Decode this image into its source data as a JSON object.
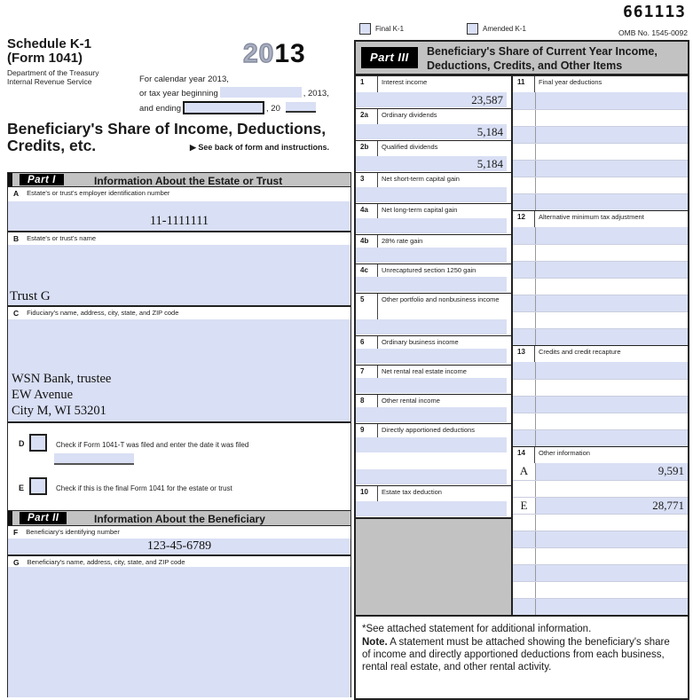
{
  "header": {
    "schedule_line1": "Schedule K-1",
    "schedule_line2": "(Form 1041)",
    "dept_line1": "Department of the Treasury",
    "dept_line2": "Internal Revenue Service",
    "year_prefix": "20",
    "year_suffix": "13",
    "calendar_line": "For calendar year 2013,",
    "beginning_label": "or tax year beginning",
    "beginning_suffix": ", 2013,",
    "ending_label": "and ending",
    "ending_suffix": ", 20",
    "main_title_line1": "Beneficiary's Share of Income, Deductions,",
    "main_title_line2": "Credits, etc.",
    "see_back": "▶ See back of form and instructions."
  },
  "top_right": {
    "serial": "661113",
    "omb": "OMB No. 1545-0092",
    "final_k1_label": "Final K-1",
    "amended_k1_label": "Amended K-1"
  },
  "part1": {
    "badge": "Part I",
    "title": "Information About the Estate or Trust",
    "a": {
      "letter": "A",
      "label": "Estate's or trust's employer identification number",
      "value": "11-1111111"
    },
    "b": {
      "letter": "B",
      "label": "Estate's or trust's name",
      "value": "Trust G"
    },
    "c": {
      "letter": "C",
      "label": "Fiduciary's name, address, city, state, and ZIP code",
      "line1": "WSN Bank, trustee",
      "line2": "EW Avenue",
      "line3": "City M, WI 53201"
    },
    "d": {
      "letter": "D",
      "label": "Check if Form 1041-T was filed and enter the date it was filed",
      "date_value": ""
    },
    "e": {
      "letter": "E",
      "label": "Check if this is the final Form 1041 for the estate or trust"
    }
  },
  "part2": {
    "badge": "Part II",
    "title": "Information About the Beneficiary",
    "f": {
      "letter": "F",
      "label": "Beneficiary's identifying number",
      "value": "123-45-6789"
    },
    "g": {
      "letter": "G",
      "label": "Beneficiary's name, address, city, state, and ZIP code",
      "value": ""
    }
  },
  "part3": {
    "badge": "Part III",
    "title_line1": "Beneficiary's Share of Current Year Income,",
    "title_line2": "Deductions, Credits, and Other Items",
    "left_items": [
      {
        "num": "1",
        "label": "Interest income",
        "values": [
          "23,587"
        ]
      },
      {
        "num": "2a",
        "label": "Ordinary dividends",
        "values": [
          "5,184"
        ]
      },
      {
        "num": "2b",
        "label": "Qualified dividends",
        "values": [
          "5,184"
        ]
      },
      {
        "num": "3",
        "label": "Net short-term capital gain",
        "values": [
          ""
        ]
      },
      {
        "num": "4a",
        "label": "Net long-term capital gain",
        "values": [
          ""
        ]
      },
      {
        "num": "4b",
        "label": "28% rate gain",
        "values": [
          ""
        ]
      },
      {
        "num": "4c",
        "label": "Unrecaptured section 1250 gain",
        "values": [
          ""
        ]
      },
      {
        "num": "5",
        "label": "Other portfolio and nonbusiness income",
        "values": [
          ""
        ]
      },
      {
        "num": "6",
        "label": "Ordinary business income",
        "values": [
          ""
        ]
      },
      {
        "num": "7",
        "label": "Net rental real estate income",
        "values": [
          ""
        ]
      },
      {
        "num": "8",
        "label": "Other rental income",
        "values": [
          ""
        ]
      },
      {
        "num": "9",
        "label": "Directly apportioned deductions",
        "values": [
          "",
          "",
          ""
        ]
      },
      {
        "num": "10",
        "label": "Estate tax deduction",
        "values": [
          ""
        ]
      }
    ],
    "right_sections": [
      {
        "num": "11",
        "label": "Final year deductions",
        "rows": [
          {
            "code": "",
            "value": ""
          },
          {
            "code": "",
            "value": ""
          },
          {
            "code": "",
            "value": ""
          },
          {
            "code": "",
            "value": ""
          },
          {
            "code": "",
            "value": ""
          },
          {
            "code": "",
            "value": ""
          },
          {
            "code": "",
            "value": ""
          }
        ]
      },
      {
        "num": "12",
        "label": "Alternative minimum tax adjustment",
        "rows": [
          {
            "code": "",
            "value": ""
          },
          {
            "code": "",
            "value": ""
          },
          {
            "code": "",
            "value": ""
          },
          {
            "code": "",
            "value": ""
          },
          {
            "code": "",
            "value": ""
          },
          {
            "code": "",
            "value": ""
          },
          {
            "code": "",
            "value": ""
          }
        ]
      },
      {
        "num": "13",
        "label": "Credits and credit recapture",
        "rows": [
          {
            "code": "",
            "value": ""
          },
          {
            "code": "",
            "value": ""
          },
          {
            "code": "",
            "value": ""
          },
          {
            "code": "",
            "value": ""
          },
          {
            "code": "",
            "value": ""
          }
        ]
      },
      {
        "num": "14",
        "label": "Other information",
        "rows": [
          {
            "code": "A",
            "value": "9,591"
          },
          {
            "code": "",
            "value": ""
          },
          {
            "code": "E",
            "value": "28,771"
          },
          {
            "code": "",
            "value": ""
          },
          {
            "code": "",
            "value": ""
          },
          {
            "code": "",
            "value": ""
          },
          {
            "code": "",
            "value": ""
          },
          {
            "code": "",
            "value": ""
          },
          {
            "code": "",
            "value": ""
          }
        ]
      }
    ],
    "footnote": "*See attached statement for additional information.",
    "note_bold": "Note.",
    "note_rest": " A statement must be attached showing the beneficiary's share of income and directly apportioned deductions from each business, rental real estate, and other rental activity."
  },
  "colors": {
    "field_blue": "#d9dff4",
    "bar_grey": "#c2c2c2",
    "border_dark": "#222222"
  }
}
